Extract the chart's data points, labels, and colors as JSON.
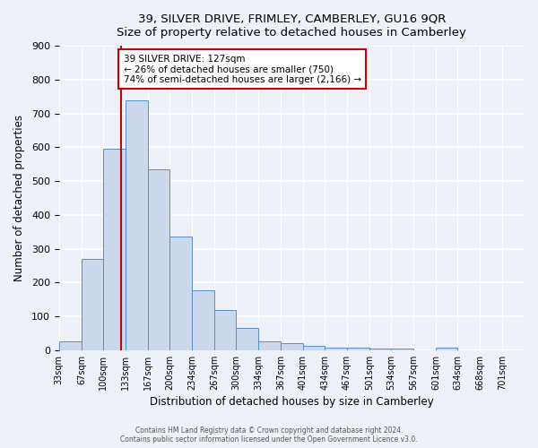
{
  "title": "39, SILVER DRIVE, FRIMLEY, CAMBERLEY, GU16 9QR",
  "subtitle": "Size of property relative to detached houses in Camberley",
  "xlabel": "Distribution of detached houses by size in Camberley",
  "ylabel": "Number of detached properties",
  "bar_values": [
    25,
    270,
    595,
    740,
    535,
    335,
    178,
    120,
    67,
    25,
    20,
    12,
    7,
    7,
    5,
    5,
    0,
    8,
    0,
    0,
    0
  ],
  "bin_edges": [
    33,
    67,
    100,
    133,
    167,
    200,
    234,
    267,
    300,
    334,
    367,
    401,
    434,
    467,
    501,
    534,
    567,
    601,
    634,
    668,
    701,
    735
  ],
  "tick_labels": [
    "33sqm",
    "67sqm",
    "100sqm",
    "133sqm",
    "167sqm",
    "200sqm",
    "234sqm",
    "267sqm",
    "300sqm",
    "334sqm",
    "367sqm",
    "401sqm",
    "434sqm",
    "467sqm",
    "501sqm",
    "534sqm",
    "567sqm",
    "601sqm",
    "634sqm",
    "668sqm",
    "701sqm"
  ],
  "bar_color": "#ccd9ec",
  "bar_edge_color": "#5b8cc8",
  "ylim": [
    0,
    900
  ],
  "yticks": [
    0,
    100,
    200,
    300,
    400,
    500,
    600,
    700,
    800,
    900
  ],
  "property_line_x": 127,
  "property_line_color": "#cc0000",
  "annotation_text": "39 SILVER DRIVE: 127sqm\n← 26% of detached houses are smaller (750)\n74% of semi-detached houses are larger (2,166) →",
  "annotation_box_color": "#ffffff",
  "annotation_box_edge": "#cc0000",
  "footer_line1": "Contains HM Land Registry data © Crown copyright and database right 2024.",
  "footer_line2": "Contains public sector information licensed under the Open Government Licence v3.0.",
  "background_color": "#eef2f8",
  "grid_color": "#ffffff"
}
